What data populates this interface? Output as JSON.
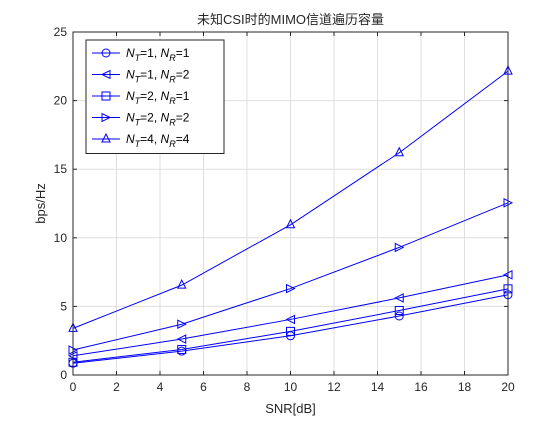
{
  "chart_data": {
    "type": "line",
    "title": "未知CSI时的MIMO信道遍历容量",
    "xlabel": "SNR[dB]",
    "ylabel": "bps/Hz",
    "xlim": [
      0,
      20
    ],
    "ylim": [
      0,
      25
    ],
    "xticks": [
      0,
      2,
      4,
      6,
      8,
      10,
      12,
      14,
      16,
      18,
      20
    ],
    "yticks": [
      0,
      5,
      10,
      15,
      20,
      25
    ],
    "grid": true,
    "legend_position": "top-left",
    "x": [
      0,
      5,
      10,
      15,
      20
    ],
    "series": [
      {
        "name": "N_T=1, N_R=1",
        "legend": {
          "nt_sub": "T",
          "mid": "=1, ",
          "nr_sub": "R",
          "end": "=1"
        },
        "marker": "circle",
        "color": "#0000ff",
        "values": [
          0.86,
          1.74,
          2.86,
          4.3,
          5.85
        ]
      },
      {
        "name": "N_T=1, N_R=2",
        "legend": {
          "nt_sub": "T",
          "mid": "=1, ",
          "nr_sub": "R",
          "end": "=2"
        },
        "marker": "triangle-left",
        "color": "#0000ff",
        "values": [
          1.4,
          2.62,
          4.05,
          5.62,
          7.3
        ]
      },
      {
        "name": "N_T=2, N_R=1",
        "legend": {
          "nt_sub": "T",
          "mid": "=2, ",
          "nr_sub": "R",
          "end": "=1"
        },
        "marker": "square",
        "color": "#0000ff",
        "values": [
          0.93,
          1.86,
          3.18,
          4.7,
          6.28
        ]
      },
      {
        "name": "N_T=2, N_R=2",
        "legend": {
          "nt_sub": "T",
          "mid": "=2, ",
          "nr_sub": "R",
          "end": "=2"
        },
        "marker": "triangle-right",
        "color": "#0000ff",
        "values": [
          1.82,
          3.7,
          6.3,
          9.3,
          12.55
        ]
      },
      {
        "name": "N_T=4, N_R=4",
        "legend": {
          "nt_sub": "T",
          "mid": "=4, ",
          "nr_sub": "R",
          "end": "=4"
        },
        "marker": "triangle-up",
        "color": "#0000ff",
        "values": [
          3.4,
          6.55,
          10.95,
          16.2,
          22.15
        ]
      }
    ]
  }
}
